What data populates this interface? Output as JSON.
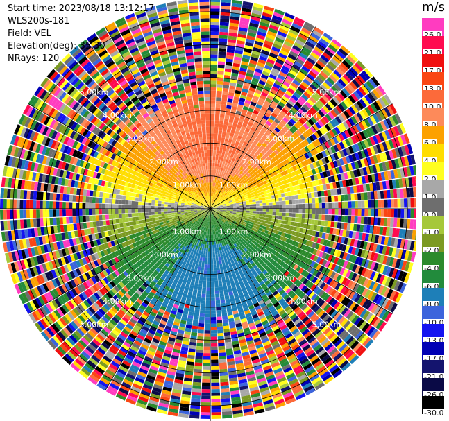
{
  "header": {
    "start_time_label": "Start time:",
    "start_time": "2023/08/18 13:12:17",
    "instrument": "WLS200s-181",
    "field_label": "Field:",
    "field": "VEL",
    "elevation_label": "Elevation(deg):",
    "elevation": "35.30",
    "nrays_label": "NRays:",
    "nrays": "120"
  },
  "colorbar": {
    "unit": "m/s",
    "bins": [
      {
        "label": "26.0",
        "color": "#ff3cc0"
      },
      {
        "label": "21.0",
        "color": "#ff0a50"
      },
      {
        "label": "17.0",
        "color": "#f01010"
      },
      {
        "label": "13.0",
        "color": "#fa4614"
      },
      {
        "label": "10.0",
        "color": "#fc6a3a"
      },
      {
        "label": "8.0",
        "color": "#fd8a5a"
      },
      {
        "label": "6.0",
        "color": "#fca100"
      },
      {
        "label": "4.0",
        "color": "#ffdd00"
      },
      {
        "label": "2.0",
        "color": "#ffff20"
      },
      {
        "label": "1.0",
        "color": "#a8a8a8"
      },
      {
        "label": "0.0",
        "color": "#6e6e6e"
      },
      {
        "label": "-1.0",
        "color": "#a6c83a"
      },
      {
        "label": "-2.0",
        "color": "#7c9a22"
      },
      {
        "label": "-4.0",
        "color": "#2c8a2c"
      },
      {
        "label": "-6.0",
        "color": "#228b3c"
      },
      {
        "label": "-8.0",
        "color": "#1e7fb8"
      },
      {
        "label": "-10.0",
        "color": "#3c64dc"
      },
      {
        "label": "-13.0",
        "color": "#1414f0"
      },
      {
        "label": "-17.0",
        "color": "#0000b4"
      },
      {
        "label": "-21.0",
        "color": "#14146e"
      },
      {
        "label": "-26.0",
        "color": "#0a0a46"
      },
      {
        "label": "-30.0",
        "color": "#000000"
      }
    ]
  },
  "chart_data": {
    "type": "heatmap",
    "projection": "polar PPI",
    "field": "VEL",
    "unit": "m/s",
    "elevation_deg": 35.3,
    "nrays": 120,
    "range_rings": [
      "1.00km",
      "2.00km",
      "3.00km",
      "4.00km",
      "5.00km"
    ],
    "valid_range_km": 3.5,
    "valid_pattern": {
      "north": "positive velocities 4 to 10 m/s (yellow to orange/salmon)",
      "center": "near zero 0 to 1 m/s (grey)",
      "south": "negative velocities -1 to -10 m/s (olive to green to blue)"
    },
    "beyond_valid_range": "noise (random colors across full scale)",
    "grid": true
  }
}
